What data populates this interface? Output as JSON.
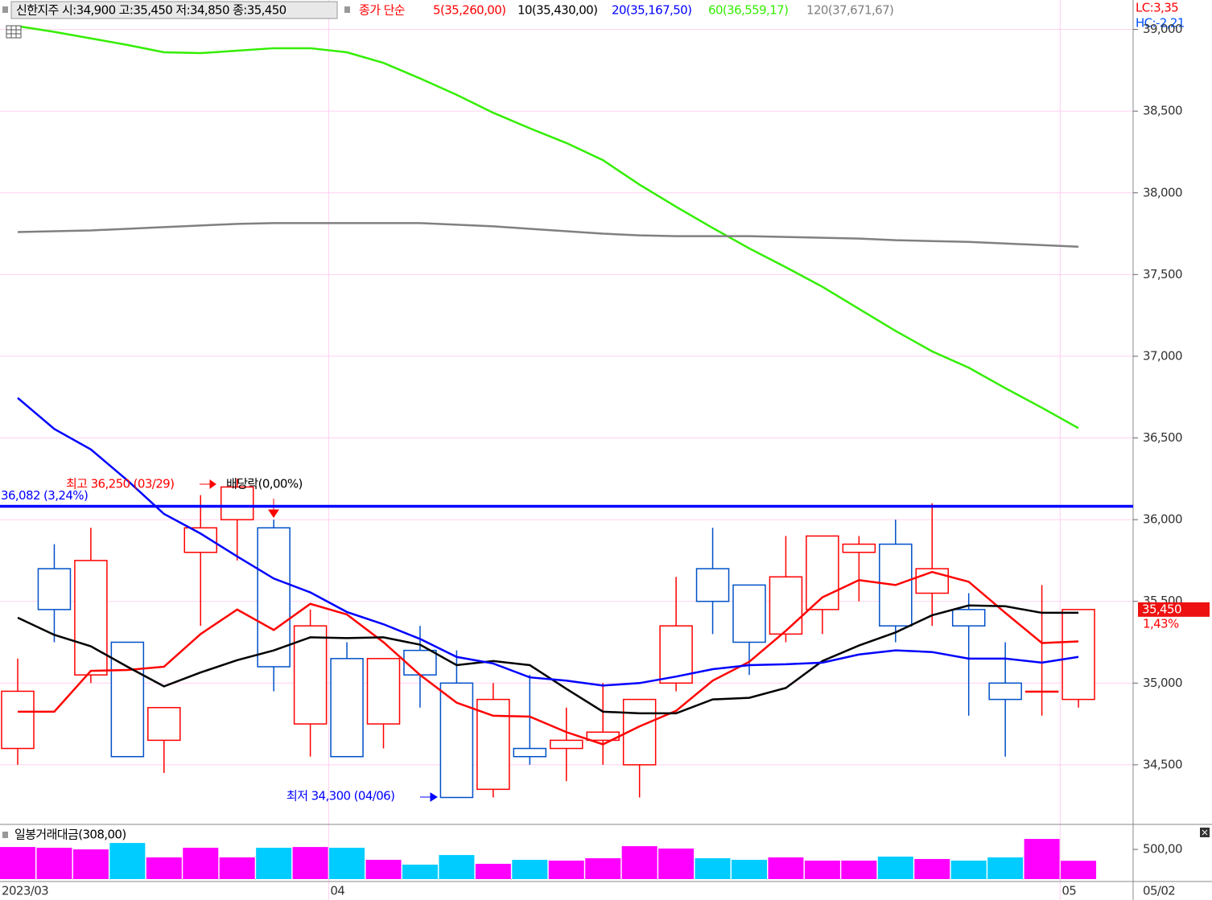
{
  "header": {
    "info": "신한지주 시:34,900 고:35,450 저:34,850 종:35,450",
    "ma_title": "종가 단순",
    "lc": "LC:3,35",
    "hc": "HC:-2,21"
  },
  "chart_data": [
    {
      "type": "candlestick",
      "categories": [
        "2023/03",
        null,
        null,
        null,
        null,
        null,
        null,
        null,
        null,
        "04",
        null,
        null,
        null,
        null,
        null,
        null,
        null,
        null,
        null,
        null,
        null,
        null,
        null,
        null,
        null,
        null,
        null,
        null,
        null,
        "05"
      ],
      "open": [
        34600,
        35700,
        35050,
        35250,
        34650,
        35800,
        36000,
        35950,
        34750,
        35150,
        34750,
        35200,
        35000,
        34350,
        34600,
        34600,
        34650,
        34500,
        35000,
        35700,
        35600,
        35300,
        35450,
        35800,
        35850,
        35550,
        35450,
        35000,
        34950,
        34900
      ],
      "high": [
        35150,
        35850,
        35950,
        35250,
        34850,
        36150,
        36250,
        36000,
        35450,
        35250,
        35150,
        35350,
        35200,
        35000,
        35050,
        34850,
        35000,
        34900,
        35650,
        35950,
        35600,
        35900,
        35900,
        35900,
        36000,
        36100,
        35550,
        35250,
        35600,
        35450
      ],
      "low": [
        34500,
        35250,
        35000,
        34550,
        34450,
        35350,
        35750,
        34950,
        34550,
        34550,
        34600,
        34850,
        34300,
        34300,
        34500,
        34400,
        34500,
        34300,
        34950,
        35300,
        35050,
        35250,
        35300,
        35500,
        35250,
        35350,
        34800,
        34550,
        34800,
        34850
      ],
      "close": [
        34950,
        35450,
        35750,
        34550,
        34850,
        35950,
        36200,
        35100,
        35350,
        34550,
        35150,
        35050,
        34300,
        34900,
        34550,
        34650,
        34700,
        34900,
        35350,
        35500,
        35250,
        35650,
        35900,
        35850,
        35350,
        35700,
        35350,
        34900,
        34950,
        35450
      ],
      "up_color": "#ff0000",
      "down_color": "#0050c8",
      "series": [
        {
          "name": "5(35,260,00)",
          "color": "#ff0000",
          "values": [
            34825,
            34825,
            35075,
            35080,
            35100,
            35300,
            35450,
            35325,
            35485,
            35420,
            35250,
            35050,
            34880,
            34800,
            34795,
            34700,
            34625,
            34735,
            34830,
            35015,
            35130,
            35320,
            35525,
            35630,
            35600,
            35680,
            35620,
            35430,
            35245,
            35255
          ]
        },
        {
          "name": "10(35,430,00)",
          "color": "#000000",
          "values": [
            35400,
            35295,
            35225,
            35100,
            34980,
            35065,
            35140,
            35200,
            35280,
            35275,
            35280,
            35235,
            35110,
            35135,
            35110,
            34965,
            34825,
            34815,
            34815,
            34900,
            34910,
            34970,
            35135,
            35230,
            35310,
            35415,
            35475,
            35470,
            35430,
            35430
          ]
        },
        {
          "name": "20(35,167,50)",
          "color": "#0000ff",
          "values": [
            36745,
            36555,
            36430,
            36240,
            36035,
            35915,
            35775,
            35640,
            35555,
            35435,
            35360,
            35270,
            35160,
            35120,
            35035,
            35015,
            34985,
            35000,
            35040,
            35085,
            35110,
            35115,
            35125,
            35175,
            35200,
            35190,
            35150,
            35150,
            35125,
            35160
          ]
        },
        {
          "name": "60(36,559,17)",
          "color": "#33ee00",
          "values": [
            39020,
            38985,
            38945,
            38905,
            38860,
            38855,
            38870,
            38885,
            38885,
            38860,
            38795,
            38700,
            38600,
            38490,
            38395,
            38305,
            38200,
            38050,
            37915,
            37785,
            37660,
            37545,
            37425,
            37290,
            37155,
            37030,
            36930,
            36805,
            36685,
            36560
          ]
        },
        {
          "name": "120(37,671,67)",
          "color": "#808080",
          "values": [
            37760,
            37765,
            37770,
            37780,
            37790,
            37800,
            37810,
            37815,
            37815,
            37815,
            37815,
            37815,
            37805,
            37795,
            37780,
            37765,
            37750,
            37740,
            37735,
            37735,
            37735,
            37730,
            37725,
            37720,
            37710,
            37705,
            37700,
            37690,
            37680,
            37670
          ]
        }
      ],
      "ylim": [
        34150,
        39180
      ],
      "yticks": [
        {
          "value": 34500,
          "label": "34,500"
        },
        {
          "value": 35000,
          "label": "35,000"
        },
        {
          "value": 35500,
          "label": "35,500"
        },
        {
          "value": 36000,
          "label": "36,000"
        },
        {
          "value": 36500,
          "label": "36,500"
        },
        {
          "value": 37000,
          "label": "37,000"
        },
        {
          "value": 37500,
          "label": "37,500"
        },
        {
          "value": 38000,
          "label": "38,000"
        },
        {
          "value": 38500,
          "label": "38,500"
        },
        {
          "value": 39000,
          "label": "39,000"
        }
      ],
      "grid": true,
      "hline": {
        "value": 36082,
        "label": "36,082 (3,24%)",
        "color": "#0000ff"
      },
      "high_label": "최고 36,250 (03/29)",
      "dividend_label": "배당락(0,00%)",
      "low_label": "최저 34,300 (04/06)",
      "last_price_label": "35,450",
      "last_change": "1,43%",
      "x_cursor_label": "05/02"
    },
    {
      "type": "bar",
      "title": "일봉거래대금(308,00)",
      "values": [
        540,
        527,
        500,
        608,
        365,
        527,
        365,
        527,
        540,
        527,
        324,
        243,
        405,
        257,
        324,
        311,
        351,
        554,
        514,
        351,
        324,
        365,
        311,
        311,
        378,
        338,
        311,
        365,
        676,
        308
      ],
      "colors": [
        "#ff00ff",
        "#ff00ff",
        "#ff00ff",
        "#00ccff",
        "#ff00ff",
        "#ff00ff",
        "#ff00ff",
        "#00ccff",
        "#ff00ff",
        "#00ccff",
        "#ff00ff",
        "#00ccff",
        "#00ccff",
        "#ff00ff",
        "#00ccff",
        "#ff00ff",
        "#ff00ff",
        "#ff00ff",
        "#ff00ff",
        "#00ccff",
        "#00ccff",
        "#ff00ff",
        "#ff00ff",
        "#ff00ff",
        "#00ccff",
        "#ff00ff",
        "#00ccff",
        "#00ccff",
        "#ff00ff",
        "#ff00ff"
      ],
      "ylim": [
        0,
        880
      ],
      "yticks": [
        {
          "value": 500,
          "label": "500,00"
        }
      ]
    }
  ]
}
